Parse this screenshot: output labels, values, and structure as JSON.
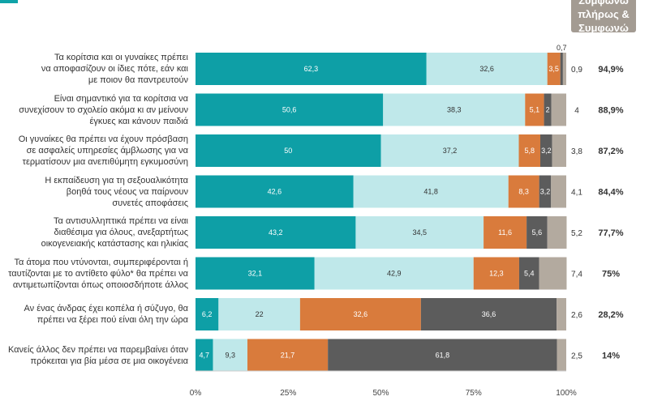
{
  "header": {
    "line1": "Συμφωνώ",
    "line2": "πλήρως &",
    "line3": "Συμφωνώ"
  },
  "colors": {
    "strongly_agree": "#0e9fa6",
    "agree": "#bfe8ea",
    "disagree": "#d97b3c",
    "strongly_disagree": "#5c5c5c",
    "no_answer": "#b3aa9f",
    "accent": "#0fa3a8",
    "header_bg": "#a39b92"
  },
  "chart_data": {
    "type": "bar",
    "orientation": "horizontal-stacked-100",
    "categories": [
      "Τα κορίτσια και οι γυναίκες πρέπει να αποφασίζουν οι ίδιες πότε, εάν και με ποιον θα παντρευτούν",
      "Είναι σημαντικό για τα κορίτσια να συνεχίσουν το σχολείο ακόμα κι αν μείνουν έγκυες και κάνουν παιδιά",
      "Οι γυναίκες θα πρέπει να έχουν πρόσβαση σε ασφαλείς υπηρεσίες άμβλωσης για να τερματίσουν μια ανεπιθύμητη εγκυμοσύνη",
      "Η εκπαίδευση για τη σεξουαλικότητα βοηθά τους νέους να παίρνουν συνετές αποφάσεις",
      "Τα αντισυλληπτικά πρέπει να είναι διαθέσιμα για όλους, ανεξαρτήτως οικογενειακής κατάστασης και ηλικίας",
      "Τα άτομα που ντύνονται, συμπεριφέρονται ή ταυτίζονται με το αντίθετο φύλο* θα πρέπει να αντιμετωπίζονται όπως οποιοσδήποτε άλλος",
      "Αν ένας άνδρας έχει κοπέλα ή σύζυγο, θα πρέπει να ξέρει πού είναι όλη την ώρα",
      "Κανείς άλλος δεν πρέπει να παρεμβαίνει όταν πρόκειται για βία μέσα σε μια οικογένεια"
    ],
    "category_lines": [
      [
        "Τα κορίτσια και οι γυναίκες πρέπει",
        "να αποφασίζουν οι ίδιες πότε, εάν και",
        "με ποιον θα παντρευτούν"
      ],
      [
        "Είναι σημαντικό για τα κορίτσια να",
        "συνεχίσουν το σχολείο ακόμα κι αν μείνουν",
        "έγκυες και κάνουν παιδιά"
      ],
      [
        "Οι γυναίκες θα πρέπει να έχουν πρόσβαση",
        "σε ασφαλείς υπηρεσίες άμβλωσης για να",
        "τερματίσουν μια ανεπιθύμητη εγκυμοσύνη"
      ],
      [
        "Η εκπαίδευση για τη σεξουαλικότητα",
        "βοηθά τους νέους να παίρνουν",
        "συνετές αποφάσεις"
      ],
      [
        "Τα αντισυλληπτικά πρέπει να είναι",
        "διαθέσιμα για όλους, ανεξαρτήτως",
        "οικογενειακής κατάστασης και ηλικίας"
      ],
      [
        "Τα άτομα που ντύνονται, συμπεριφέρονται ή",
        "ταυτίζονται με το αντίθετο φύλο* θα πρέπει να",
        "αντιμετωπίζονται όπως οποιοσδήποτε άλλος"
      ],
      [
        "Αν ένας άνδρας έχει κοπέλα ή σύζυγο, θα",
        "πρέπει να ξέρει πού είναι όλη την ώρα"
      ],
      [
        "Κανείς άλλος δεν πρέπει να παρεμβαίνει όταν",
        "πρόκειται για βία μέσα σε μια οικογένεια"
      ]
    ],
    "series": [
      {
        "key": "strongly_agree",
        "values": [
          62.3,
          50.6,
          50,
          42.6,
          43.2,
          32.1,
          6.2,
          4.7
        ],
        "labels": [
          "62,3",
          "50,6",
          "50",
          "42,6",
          "43,2",
          "32,1",
          "6,2",
          "4,7"
        ]
      },
      {
        "key": "agree",
        "values": [
          32.6,
          38.3,
          37.2,
          41.8,
          34.5,
          42.9,
          22,
          9.3
        ],
        "labels": [
          "32,6",
          "38,3",
          "37,2",
          "41,8",
          "34,5",
          "42,9",
          "22",
          "9,3"
        ]
      },
      {
        "key": "disagree",
        "values": [
          3.5,
          5.1,
          5.8,
          8.3,
          11.6,
          12.3,
          32.6,
          21.7
        ],
        "labels": [
          "3,5",
          "5,1",
          "5,8",
          "8,3",
          "11,6",
          "12,3",
          "32,6",
          "21,7"
        ]
      },
      {
        "key": "strongly_disagree",
        "values": [
          0.7,
          2,
          3.2,
          3.2,
          5.6,
          5.4,
          36.6,
          61.8
        ],
        "labels": [
          "0,7",
          "2",
          "3,2",
          "3,2",
          "5,6",
          "5,4",
          "36,6",
          "61,8"
        ]
      },
      {
        "key": "no_answer",
        "values": [
          0.9,
          4,
          3.8,
          4.1,
          5.2,
          7.4,
          2.6,
          2.5
        ],
        "labels": [
          "0,9",
          "4",
          "3,8",
          "4,1",
          "5,2",
          "7,4",
          "2,6",
          "2,5"
        ]
      }
    ],
    "agree_total_labels": [
      "94,9%",
      "88,9%",
      "87,2%",
      "84,4%",
      "77,7%",
      "75%",
      "28,2%",
      "14%"
    ],
    "xlim": [
      0,
      100
    ],
    "x_ticks": [
      "0%",
      "25%",
      "50%",
      "75%",
      "100%"
    ],
    "grid": false
  }
}
